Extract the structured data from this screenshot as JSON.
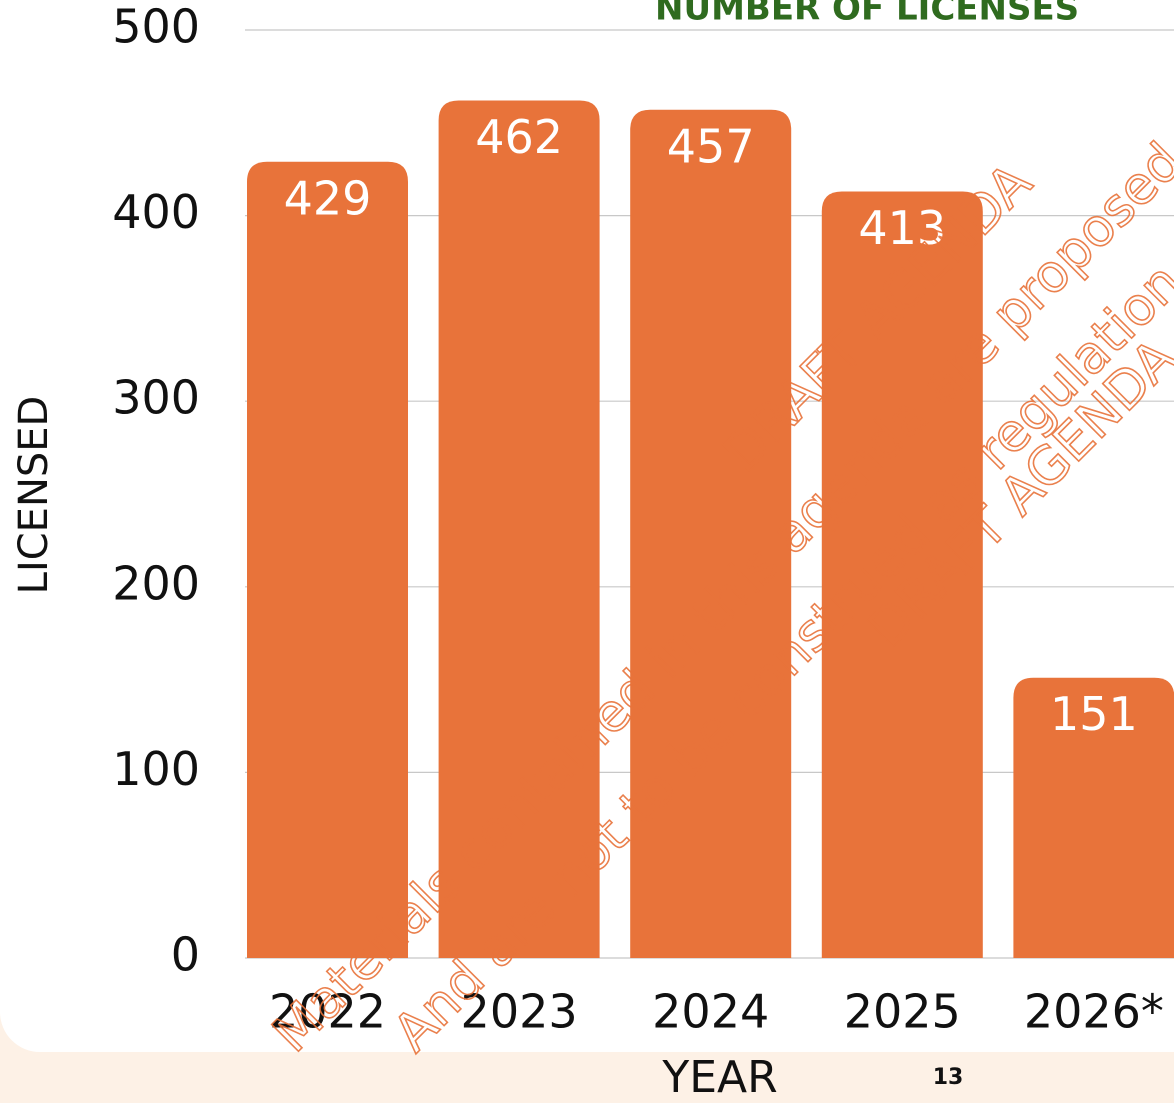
{
  "chart_data": {
    "type": "bar",
    "title": "NUMBER OF LICENSES",
    "x_label": "YEAR",
    "y_label": "LICENSED",
    "categories": [
      "2022",
      "2023",
      "2024",
      "2025",
      "2026*"
    ],
    "values": [
      429,
      462,
      457,
      413,
      151
    ],
    "color": "#e8733a",
    "ylim": [
      0,
      500
    ],
    "yticks": [
      0,
      100,
      200,
      300,
      400,
      500
    ],
    "grid": true
  },
  "page_number": "13",
  "watermark": [
    "DRAFT AGENDA",
    "Materials contained in this agenda are proposed",
    "And are not to be construed as regulation",
    "DRAFT AGENDA"
  ]
}
